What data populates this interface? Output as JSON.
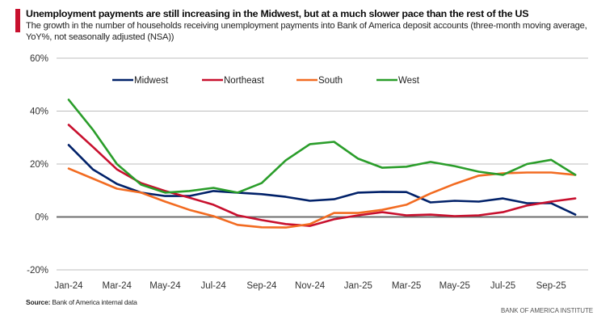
{
  "header": {
    "title": "Unemployment payments are still increasing in the Midwest, but at a much slower pace than the rest of the US",
    "subtitle": "The growth in the number of households receiving unemployment payments into Bank of America deposit accounts (three-month moving average, YoY%, not seasonally adjusted (NSA))",
    "accent_color": "#c8102e"
  },
  "footer": {
    "source_label": "Source:",
    "source_text": " Bank of America internal data",
    "brand": "BANK OF AMERICA INSTITUTE"
  },
  "chart_data": {
    "type": "line",
    "title": "Unemployment payments are still increasing in the Midwest, but at a much slower pace than the rest of the US",
    "xlabel": "",
    "ylabel": "YoY%",
    "ylim": [
      -20,
      60
    ],
    "yticks": [
      -20,
      0,
      20,
      40,
      60
    ],
    "ytick_labels": [
      "-20%",
      "0%",
      "20%",
      "40%",
      "60%"
    ],
    "grid": true,
    "legend_position": "top",
    "x": [
      "Jan-24",
      "Feb-24",
      "Mar-24",
      "Apr-24",
      "May-24",
      "Jun-24",
      "Jul-24",
      "Aug-24",
      "Sep-24",
      "Oct-24",
      "Nov-24",
      "Dec-24",
      "Jan-25",
      "Feb-25",
      "Mar-25",
      "Apr-25",
      "May-25",
      "Jun-25",
      "Jul-25",
      "Aug-25",
      "Sep-25",
      "Oct-25"
    ],
    "xtick_labels": [
      "Jan-24",
      "Mar-24",
      "May-24",
      "Jul-24",
      "Sep-24",
      "Nov-24",
      "Jan-25",
      "Mar-25",
      "May-25",
      "Jul-25",
      "Sep-25"
    ],
    "series": [
      {
        "name": "Midwest",
        "color": "#012169",
        "values": [
          27.2,
          18.0,
          12.5,
          9.2,
          7.9,
          7.9,
          9.8,
          9.2,
          8.6,
          7.6,
          6.1,
          6.7,
          9.2,
          9.5,
          9.4,
          5.5,
          6.1,
          5.8,
          7.0,
          5.2,
          5.2,
          0.9
        ]
      },
      {
        "name": "Northeast",
        "color": "#c8102e",
        "values": [
          34.8,
          26.5,
          18.0,
          12.8,
          9.8,
          7.3,
          4.6,
          0.6,
          -1.2,
          -2.7,
          -3.4,
          -0.9,
          0.6,
          1.8,
          0.6,
          0.9,
          0.3,
          0.6,
          1.8,
          4.3,
          5.8,
          7.0
        ]
      },
      {
        "name": "South",
        "color": "#f26b21",
        "values": [
          18.3,
          14.5,
          10.7,
          9.2,
          5.8,
          2.7,
          0.3,
          -3.0,
          -3.9,
          -4.0,
          -2.7,
          1.5,
          1.5,
          2.7,
          4.6,
          8.9,
          12.5,
          15.6,
          16.5,
          16.8,
          16.8,
          15.9
        ]
      },
      {
        "name": "West",
        "color": "#2a9d2a",
        "values": [
          44.3,
          33.0,
          20.0,
          12.2,
          9.2,
          9.8,
          11.0,
          9.2,
          12.8,
          21.4,
          27.5,
          28.4,
          22.0,
          18.6,
          19.0,
          20.8,
          19.2,
          17.1,
          15.9,
          20.0,
          21.6,
          15.9
        ]
      }
    ]
  }
}
